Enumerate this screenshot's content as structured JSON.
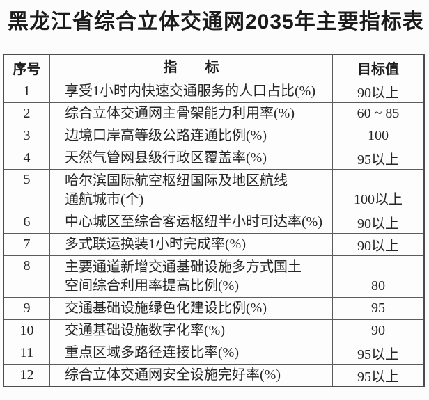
{
  "title": "黑龙江省综合立体交通网2035年主要指标表",
  "colors": {
    "background": "#fcfcfc",
    "border_outer": "#4c4c4c",
    "border_inner": "#5c5c5c",
    "text": "#262626",
    "title_text": "#1b1b1b"
  },
  "table": {
    "headers": {
      "index": "序号",
      "indicator": "指　　标",
      "target": "目标值"
    },
    "rows": [
      {
        "index": "1",
        "indicator": "享受1小时内快速交通服务的人口占比(%)",
        "target": "90以上",
        "two_line": false
      },
      {
        "index": "2",
        "indicator": "综合立体交通网主骨架能力利用率(%)",
        "target": "60 ~ 85",
        "two_line": false
      },
      {
        "index": "3",
        "indicator": "边境口岸高等级公路连通比例(%)",
        "target": "100",
        "two_line": false
      },
      {
        "index": "4",
        "indicator": "天然气管网县级行政区覆盖率(%)",
        "target": "95以上",
        "two_line": false
      },
      {
        "index": "5",
        "indicator": "哈尔滨国际航空枢纽国际及地区航线\n通航城市(个)",
        "target": "100以上",
        "two_line": true
      },
      {
        "index": "6",
        "indicator": "中心城区至综合客运枢纽半小时可达率(%)",
        "target": "90以上",
        "two_line": false
      },
      {
        "index": "7",
        "indicator": "多式联运换装1小时完成率(%)",
        "target": "90以上",
        "two_line": false
      },
      {
        "index": "8",
        "indicator": "主要通道新增交通基础设施多方式国土\n空间综合利用率提高比例(%)",
        "target": "80",
        "two_line": true
      },
      {
        "index": "9",
        "indicator": "交通基础设施绿色化建设比例(%)",
        "target": "95",
        "two_line": false
      },
      {
        "index": "10",
        "indicator": "交通基础设施数字化率(%)",
        "target": "90",
        "two_line": false
      },
      {
        "index": "11",
        "indicator": "重点区域多路径连接比率(%)",
        "target": "95以上",
        "two_line": false
      },
      {
        "index": "12",
        "indicator": "综合立体交通网安全设施完好率(%)",
        "target": "95以上",
        "two_line": false
      }
    ]
  }
}
